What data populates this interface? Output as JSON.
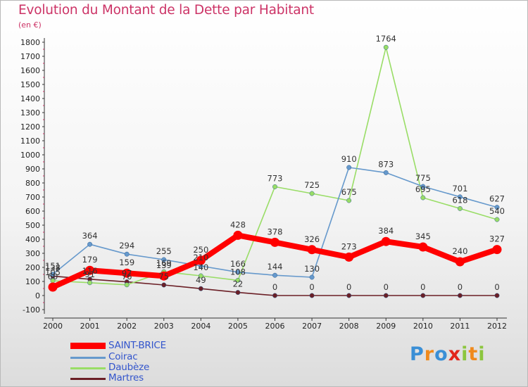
{
  "header": {
    "title": "Evolution du Montant de la Dette par Habitant",
    "subtitle": "(en €)"
  },
  "logo": {
    "text": "Proxiti",
    "letters": [
      "P",
      "r",
      "o",
      "x",
      "i",
      "t",
      "i"
    ],
    "colors": [
      "#3a8fd6",
      "#f08a1c",
      "#3a8fd6",
      "#e2261c",
      "#8cc63e",
      "#f08a1c",
      "#8cc63e"
    ]
  },
  "chart_data": {
    "type": "line",
    "title": "Evolution du Montant de la Dette par Habitant",
    "subtitle": "(en €)",
    "x": [
      "2000",
      "2001",
      "2002",
      "2003",
      "2004",
      "2005",
      "2006",
      "2007",
      "2008",
      "2009",
      "2010",
      "2011",
      "2012"
    ],
    "ylim": [
      -100,
      1800
    ],
    "yticks": [
      "-100",
      "0",
      "100",
      "200",
      "300",
      "400",
      "500",
      "600",
      "700",
      "800",
      "900",
      "1000",
      "1100",
      "1200",
      "1300",
      "1400",
      "1500",
      "1600",
      "1700",
      "1800"
    ],
    "grid": false,
    "legend_position": "bottom-left",
    "series": [
      {
        "name": "Martres",
        "color": "#6b1f26",
        "values": [
          138,
          116,
          97,
          75,
          49,
          22,
          0,
          0,
          0,
          0,
          0,
          0,
          0
        ],
        "labels": [
          "138",
          "116",
          "97",
          "75",
          "49",
          "22",
          "0",
          "0",
          "0",
          "0",
          "0",
          "0",
          "0"
        ]
      },
      {
        "name": "Daubèze",
        "color": "#99dd66",
        "values": [
          105,
          91,
          76,
          169,
          140,
          108,
          773,
          725,
          675,
          1764,
          695,
          618,
          540
        ],
        "labels": [
          "105",
          "91",
          "76",
          "169",
          "140",
          "108",
          "773",
          "725",
          "675",
          "1764",
          "695",
          "618",
          "540"
        ]
      },
      {
        "name": "Coirac",
        "color": "#6699cc",
        "values": [
          151,
          364,
          294,
          255,
          210,
          166,
          144,
          130,
          910,
          873,
          775,
          701,
          627
        ],
        "labels": [
          "151",
          "364",
          "294",
          "255",
          "210",
          "166",
          "144",
          "130",
          "910",
          "873",
          "775",
          "701",
          "627"
        ]
      },
      {
        "name": "SAINT-BRICE",
        "color": "#ff0000",
        "values": [
          60,
          179,
          159,
          139,
          250,
          428,
          378,
          326,
          273,
          384,
          345,
          240,
          327
        ],
        "labels": [
          "60",
          "179",
          "159",
          "139",
          "250",
          "428",
          "378",
          "326",
          "273",
          "384",
          "345",
          "240",
          "327"
        ]
      }
    ],
    "legend": [
      {
        "name": "SAINT-BRICE",
        "color": "#ff0000"
      },
      {
        "name": "Coirac",
        "color": "#6699cc"
      },
      {
        "name": "Daubèze",
        "color": "#99dd66"
      },
      {
        "name": "Martres",
        "color": "#6b1f26"
      }
    ]
  }
}
